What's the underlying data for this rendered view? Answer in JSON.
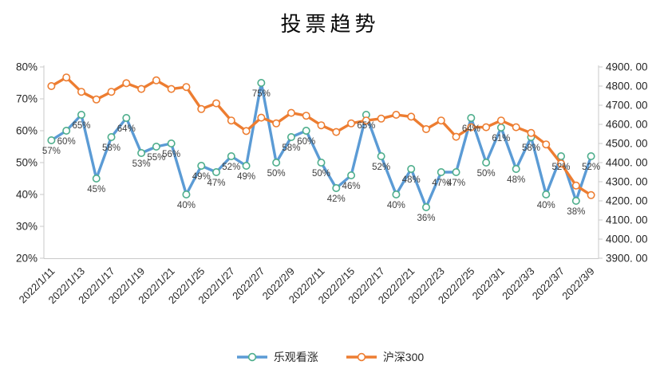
{
  "title": "投票趋势",
  "legend": {
    "items": [
      {
        "label": "乐观看涨",
        "color": "#5B9BD5",
        "marker_ring": "#4EAE8C"
      },
      {
        "label": "沪深300",
        "color": "#ED7D31",
        "marker_ring": "#ED7D31"
      }
    ]
  },
  "colors": {
    "series_optimistic": "#5B9BD5",
    "series_hs300": "#ED7D31",
    "marker_ring_green": "#4EAE8C",
    "marker_fill": "#FFFFFF",
    "axis_line": "#C9C9C9",
    "axis_text": "#262626",
    "data_label_text": "#404040",
    "background": "#FFFFFF"
  },
  "chart_data": {
    "type": "line",
    "title": "投票趋势",
    "grid": false,
    "legend_position": "bottom",
    "n_points": 37,
    "x_tick_labels": [
      "2022/1/11",
      "2022/1/13",
      "2022/1/17",
      "2022/1/19",
      "2022/1/21",
      "2022/1/25",
      "2022/1/27",
      "2022/2/7",
      "2022/2/9",
      "2022/2/11",
      "2022/2/15",
      "2022/2/17",
      "2022/2/21",
      "2022/2/23",
      "2022/2/25",
      "2022/3/1",
      "2022/3/3",
      "2022/3/7",
      "2022/3/9"
    ],
    "x_tick_point_indices": [
      0,
      2,
      4,
      6,
      8,
      10,
      12,
      14,
      16,
      18,
      20,
      22,
      24,
      26,
      28,
      30,
      32,
      34,
      36
    ],
    "left_axis": {
      "min": 20,
      "max": 80,
      "unit": "%",
      "tick_labels": [
        "80%",
        "70%",
        "60%",
        "50%",
        "40%",
        "30%",
        "20%"
      ]
    },
    "right_axis": {
      "min": 3900,
      "max": 4900,
      "tick_labels": [
        "4900. 00",
        "4800. 00",
        "4700. 00",
        "4600. 00",
        "4500. 00",
        "4400. 00",
        "4300. 00",
        "4200. 00",
        "4100. 00",
        "4000. 00",
        "3900. 00"
      ]
    },
    "series": [
      {
        "name": "乐观看涨",
        "axis": "left",
        "color": "#5B9BD5",
        "marker": "circle",
        "marker_fill": "#FFFFFF",
        "marker_ring": "#4EAE8C",
        "values_pct": [
          57,
          60,
          65,
          45,
          58,
          64,
          53,
          55,
          56,
          40,
          49,
          47,
          52,
          49,
          75,
          50,
          58,
          60,
          50,
          42,
          46,
          65,
          52,
          40,
          48,
          36,
          47,
          47,
          64,
          50,
          61,
          48,
          58,
          40,
          52,
          38,
          52
        ],
        "data_labels": [
          "57%",
          "60%",
          "65%",
          "45%",
          "58%",
          "64%",
          "53%",
          "55%",
          "56%",
          "40%",
          "49%",
          "47%",
          "52%",
          "49%",
          "75%",
          "50%",
          "58%",
          "60%",
          "50%",
          "42%",
          "46%",
          "65%",
          "52%",
          "40%",
          "48%",
          "36%",
          "47%",
          "47%",
          "64%",
          "50%",
          "61%",
          "48%",
          "58%",
          "40%",
          "52%",
          "38%",
          "52%"
        ]
      },
      {
        "name": "沪深300",
        "axis": "right",
        "color": "#ED7D31",
        "marker": "circle",
        "marker_fill": "#FFFFFF",
        "marker_ring": "#ED7D31",
        "values": [
          4800,
          4845,
          4770,
          4730,
          4770,
          4815,
          4785,
          4830,
          4785,
          4795,
          4680,
          4710,
          4620,
          4565,
          4635,
          4605,
          4660,
          4645,
          4595,
          4560,
          4605,
          4620,
          4630,
          4650,
          4640,
          4575,
          4620,
          4535,
          4585,
          4585,
          4620,
          4585,
          4555,
          4495,
          4395,
          4280,
          4230
        ]
      }
    ]
  }
}
